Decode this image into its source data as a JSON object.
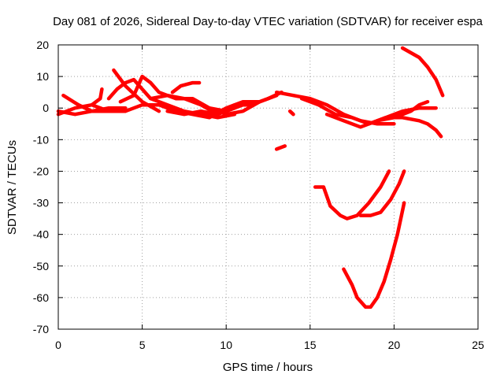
{
  "chart_data": {
    "type": "line",
    "title": "Day 081 of 2026, Sidereal Day-to-day VTEC variation (SDTVAR) for receiver espa",
    "xlabel": "GPS time / hours",
    "ylabel": "SDTVAR / TECUs",
    "xlim": [
      0,
      25
    ],
    "ylim": [
      -70,
      20
    ],
    "xticks": [
      "0",
      "5",
      "10",
      "15",
      "20",
      "25"
    ],
    "yticks": [
      "20",
      "10",
      "0",
      "-10",
      "-20",
      "-30",
      "-40",
      "-50",
      "-60",
      "-70"
    ],
    "grid": true,
    "series_color": "#ff0000",
    "series": [
      {
        "points": [
          [
            0.0,
            -1
          ],
          [
            1.0,
            -2
          ],
          [
            2.0,
            -1
          ],
          [
            3.0,
            -1
          ],
          [
            4.0,
            -1
          ],
          [
            5.0,
            1
          ],
          [
            6.0,
            1
          ],
          [
            7.0,
            -1
          ],
          [
            8.0,
            -2
          ],
          [
            9.0,
            -3
          ],
          [
            10.0,
            0
          ],
          [
            11.0,
            2
          ],
          [
            12.0,
            2
          ],
          [
            13.0,
            4
          ]
        ]
      },
      {
        "points": [
          [
            0.3,
            4
          ],
          [
            1.2,
            1
          ],
          [
            2.0,
            -1
          ],
          [
            3.0,
            0
          ],
          [
            4.0,
            0
          ]
        ]
      },
      {
        "points": [
          [
            0.0,
            -2
          ],
          [
            1.0,
            0
          ],
          [
            2.0,
            1
          ],
          [
            3.0,
            -1
          ],
          [
            4.0,
            -1
          ]
        ]
      },
      {
        "points": [
          [
            2.0,
            1
          ],
          [
            2.5,
            3
          ],
          [
            2.6,
            6
          ]
        ]
      },
      {
        "points": [
          [
            3.0,
            3
          ],
          [
            3.5,
            6
          ],
          [
            4.0,
            8
          ],
          [
            4.5,
            9
          ],
          [
            5.5,
            3
          ],
          [
            6.5,
            1
          ],
          [
            7.5,
            -1
          ],
          [
            8.5,
            -2
          ],
          [
            9.5,
            -3
          ],
          [
            10.5,
            -2
          ]
        ]
      },
      {
        "points": [
          [
            3.3,
            12
          ],
          [
            4.0,
            7
          ],
          [
            5.0,
            2
          ],
          [
            6.0,
            -1
          ]
        ]
      },
      {
        "points": [
          [
            3.7,
            2
          ],
          [
            4.5,
            4
          ],
          [
            5.0,
            10
          ],
          [
            5.5,
            8
          ],
          [
            6.0,
            5
          ],
          [
            7.0,
            3
          ],
          [
            8.0,
            3
          ],
          [
            9.0,
            0
          ],
          [
            10.0,
            -1
          ],
          [
            10.5,
            0
          ]
        ]
      },
      {
        "points": [
          [
            5.5,
            3
          ],
          [
            6.5,
            4
          ],
          [
            7.5,
            3
          ],
          [
            8.5,
            1
          ],
          [
            9.5,
            -2
          ],
          [
            10.5,
            0
          ],
          [
            11.5,
            2
          ]
        ]
      },
      {
        "points": [
          [
            6.5,
            -1
          ],
          [
            7.5,
            -2
          ],
          [
            8.5,
            -1
          ],
          [
            9.5,
            -2
          ],
          [
            10.5,
            1
          ],
          [
            11.5,
            1
          ],
          [
            12.5,
            3
          ],
          [
            13.3,
            5
          ]
        ]
      },
      {
        "points": [
          [
            6.8,
            5
          ],
          [
            7.3,
            7
          ],
          [
            8.0,
            8
          ],
          [
            8.4,
            8
          ]
        ]
      },
      {
        "points": [
          [
            9.0,
            0
          ],
          [
            10.0,
            -2
          ],
          [
            11.0,
            -1
          ],
          [
            12.0,
            2
          ],
          [
            13.0,
            4
          ]
        ]
      },
      {
        "points": [
          [
            13.0,
            5
          ],
          [
            14.0,
            4
          ],
          [
            15.0,
            3
          ],
          [
            16.0,
            1
          ],
          [
            17.0,
            -2
          ],
          [
            18.0,
            -4
          ],
          [
            19.0,
            -5
          ],
          [
            20.0,
            -5
          ]
        ]
      },
      {
        "points": [
          [
            13.0,
            -13
          ],
          [
            13.5,
            -12
          ]
        ]
      },
      {
        "points": [
          [
            13.8,
            -1
          ],
          [
            14.0,
            -2
          ]
        ]
      },
      {
        "points": [
          [
            14.5,
            3
          ],
          [
            15.5,
            1
          ],
          [
            16.5,
            -2
          ],
          [
            17.5,
            -3
          ],
          [
            18.5,
            -5
          ],
          [
            19.5,
            -3
          ],
          [
            20.5,
            -3
          ],
          [
            21.5,
            -4
          ],
          [
            22.0,
            -5
          ],
          [
            22.5,
            -7
          ],
          [
            22.8,
            -9
          ]
        ]
      },
      {
        "points": [
          [
            16.0,
            -2
          ],
          [
            17.0,
            -4
          ],
          [
            18.0,
            -6
          ],
          [
            19.0,
            -4
          ],
          [
            20.0,
            -3
          ],
          [
            21.0,
            -1
          ],
          [
            21.5,
            1
          ],
          [
            22.0,
            2
          ]
        ]
      },
      {
        "points": [
          [
            19.0,
            -4
          ],
          [
            19.5,
            -3
          ],
          [
            20.5,
            -1
          ],
          [
            21.5,
            0
          ],
          [
            22.5,
            0
          ]
        ]
      },
      {
        "points": [
          [
            20.5,
            19
          ],
          [
            21.5,
            16
          ],
          [
            22.0,
            13
          ],
          [
            22.5,
            9
          ],
          [
            22.9,
            4
          ]
        ]
      },
      {
        "points": [
          [
            15.3,
            -25
          ],
          [
            15.8,
            -25
          ],
          [
            16.2,
            -31
          ],
          [
            16.8,
            -34
          ],
          [
            17.2,
            -35
          ],
          [
            17.8,
            -34
          ],
          [
            18.5,
            -30
          ],
          [
            19.2,
            -25
          ],
          [
            19.7,
            -20
          ]
        ]
      },
      {
        "points": [
          [
            18.0,
            -34
          ],
          [
            18.6,
            -34
          ],
          [
            19.2,
            -33
          ],
          [
            19.8,
            -29
          ],
          [
            20.3,
            -24
          ],
          [
            20.6,
            -20
          ]
        ]
      },
      {
        "points": [
          [
            17.0,
            -51
          ],
          [
            17.5,
            -56
          ],
          [
            17.8,
            -60
          ],
          [
            18.3,
            -63
          ],
          [
            18.6,
            -63
          ],
          [
            19.0,
            -60
          ],
          [
            19.4,
            -55
          ],
          [
            19.8,
            -48
          ],
          [
            20.2,
            -40
          ],
          [
            20.6,
            -30
          ]
        ]
      }
    ]
  }
}
